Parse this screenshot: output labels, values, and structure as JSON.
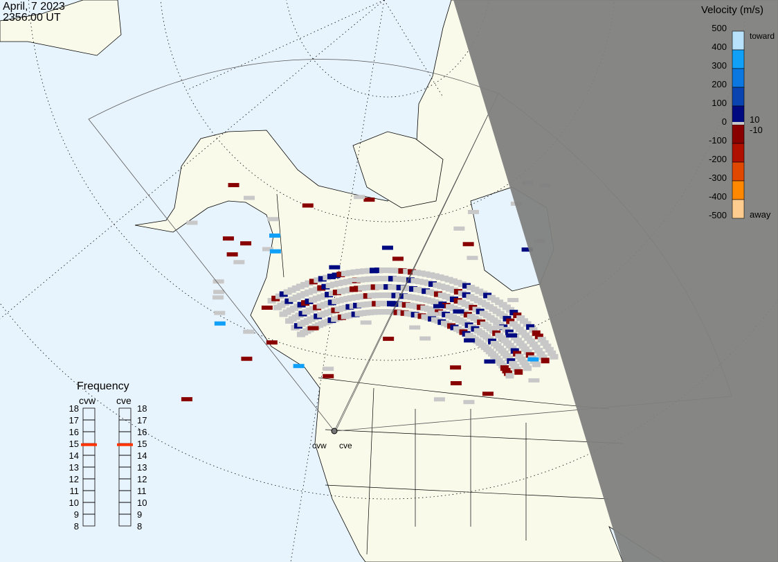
{
  "header": {
    "date": "April, 7 2023",
    "time": "2356:00 UT"
  },
  "colorbar": {
    "title": "Velocity (m/s)",
    "ticks": [
      "500",
      "400",
      "300",
      "200",
      "100",
      "0",
      "-100",
      "-200",
      "-300",
      "-400",
      "-500"
    ],
    "toward_label": "toward",
    "away_label": "away",
    "pos_threshold": "10",
    "neg_threshold": "-10",
    "colors": [
      "#b8e2fc",
      "#10a0f8",
      "#0a78e0",
      "#0a44b0",
      "#000a80",
      "#c8c8c8",
      "#880000",
      "#b01000",
      "#e04800",
      "#ff8800",
      "#ffcc90"
    ]
  },
  "frequency": {
    "title": "Frequency",
    "radars": [
      {
        "name": "cvw",
        "value_mhz": 14.9
      },
      {
        "name": "cve",
        "value_mhz": 14.9
      }
    ],
    "ticks": [
      "18",
      "17",
      "16",
      "15",
      "14",
      "13",
      "12",
      "11",
      "10",
      "9",
      "8"
    ],
    "marker_color": "#ff3300"
  },
  "radar_labels": [
    "cvw",
    "cve"
  ],
  "colors": {
    "ocean": "#e8f4fd",
    "land": "#fafaeb",
    "night": "#7f7f7f",
    "ground_scatter": "#c8c8c8"
  }
}
